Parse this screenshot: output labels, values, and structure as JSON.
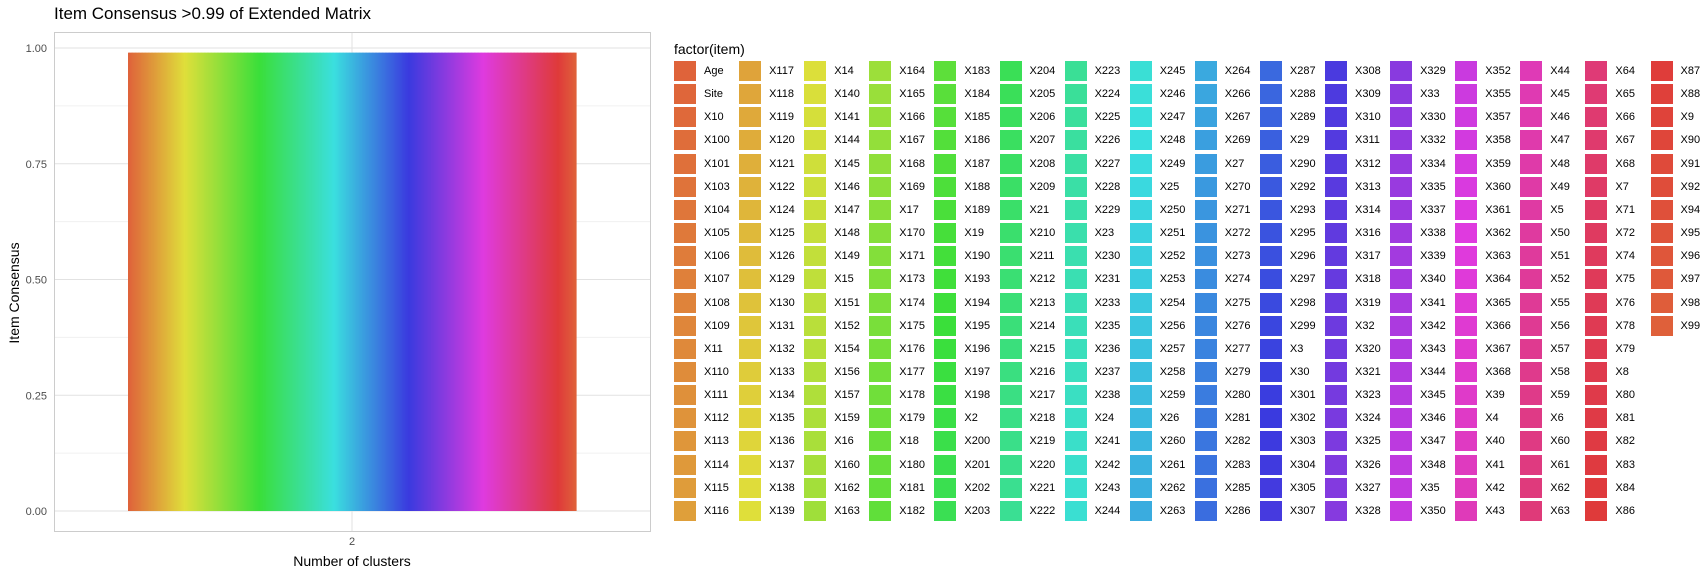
{
  "chart_data": {
    "type": "bar",
    "title": "Item Consensus >0.99 of Extended Matrix",
    "xlabel": "Number of clusters",
    "ylabel": "Item Consensus",
    "categories": [
      "2"
    ],
    "value": 0.99,
    "ylim": [
      0,
      1.05
    ],
    "y_ticks": [
      "0.00",
      "0.25",
      "0.50",
      "0.75",
      "1.00"
    ],
    "y_tick_values": [
      0,
      0.25,
      0.5,
      0.75,
      1.0
    ],
    "grid": true,
    "stacked_by": "item",
    "legend": {
      "title": "factor(item)",
      "placement": "right",
      "items": [
        "Age",
        "Site",
        "X10",
        "X100",
        "X101",
        "X103",
        "X104",
        "X105",
        "X106",
        "X107",
        "X108",
        "X109",
        "X11",
        "X110",
        "X111",
        "X112",
        "X113",
        "X114",
        "X115",
        "X116",
        "X117",
        "X118",
        "X119",
        "X120",
        "X121",
        "X122",
        "X124",
        "X125",
        "X126",
        "X129",
        "X130",
        "X131",
        "X132",
        "X133",
        "X134",
        "X135",
        "X136",
        "X137",
        "X138",
        "X139",
        "X14",
        "X140",
        "X141",
        "X144",
        "X145",
        "X146",
        "X147",
        "X148",
        "X149",
        "X15",
        "X151",
        "X152",
        "X154",
        "X156",
        "X157",
        "X159",
        "X16",
        "X160",
        "X162",
        "X163",
        "X164",
        "X165",
        "X166",
        "X167",
        "X168",
        "X169",
        "X17",
        "X170",
        "X171",
        "X173",
        "X174",
        "X175",
        "X176",
        "X177",
        "X178",
        "X179",
        "X18",
        "X180",
        "X181",
        "X182",
        "X183",
        "X184",
        "X185",
        "X186",
        "X187",
        "X188",
        "X189",
        "X19",
        "X190",
        "X193",
        "X194",
        "X195",
        "X196",
        "X197",
        "X198",
        "X2",
        "X200",
        "X201",
        "X202",
        "X203",
        "X204",
        "X205",
        "X206",
        "X207",
        "X208",
        "X209",
        "X21",
        "X210",
        "X211",
        "X212",
        "X213",
        "X214",
        "X215",
        "X216",
        "X217",
        "X218",
        "X219",
        "X220",
        "X221",
        "X222",
        "X223",
        "X224",
        "X225",
        "X226",
        "X227",
        "X228",
        "X229",
        "X23",
        "X230",
        "X231",
        "X233",
        "X235",
        "X236",
        "X237",
        "X238",
        "X24",
        "X241",
        "X242",
        "X243",
        "X244",
        "X245",
        "X246",
        "X247",
        "X248",
        "X249",
        "X25",
        "X250",
        "X251",
        "X252",
        "X253",
        "X254",
        "X256",
        "X257",
        "X258",
        "X259",
        "X26",
        "X260",
        "X261",
        "X262",
        "X263",
        "X264",
        "X266",
        "X267",
        "X269",
        "X27",
        "X270",
        "X271",
        "X272",
        "X273",
        "X274",
        "X275",
        "X276",
        "X277",
        "X279",
        "X280",
        "X281",
        "X282",
        "X283",
        "X285",
        "X286",
        "X287",
        "X288",
        "X289",
        "X29",
        "X290",
        "X292",
        "X293",
        "X295",
        "X296",
        "X297",
        "X298",
        "X299",
        "X3",
        "X30",
        "X301",
        "X302",
        "X303",
        "X304",
        "X305",
        "X307",
        "X308",
        "X309",
        "X310",
        "X311",
        "X312",
        "X313",
        "X314",
        "X316",
        "X317",
        "X318",
        "X319",
        "X32",
        "X320",
        "X321",
        "X323",
        "X324",
        "X325",
        "X326",
        "X327",
        "X328",
        "X329",
        "X33",
        "X330",
        "X332",
        "X334",
        "X335",
        "X337",
        "X338",
        "X339",
        "X340",
        "X341",
        "X342",
        "X343",
        "X344",
        "X345",
        "X346",
        "X347",
        "X348",
        "X35",
        "X350",
        "X352",
        "X355",
        "X357",
        "X358",
        "X359",
        "X360",
        "X361",
        "X362",
        "X363",
        "X364",
        "X365",
        "X366",
        "X367",
        "X368",
        "X39",
        "X4",
        "X40",
        "X41",
        "X42",
        "X43",
        "X44",
        "X45",
        "X46",
        "X47",
        "X48",
        "X49",
        "X5",
        "X50",
        "X51",
        "X52",
        "X55",
        "X56",
        "X57",
        "X58",
        "X59",
        "X6",
        "X60",
        "X61",
        "X62",
        "X63",
        "X64",
        "X65",
        "X66",
        "X67",
        "X68",
        "X7",
        "X71",
        "X72",
        "X74",
        "X75",
        "X76",
        "X78",
        "X79",
        "X8",
        "X80",
        "X81",
        "X82",
        "X83",
        "X84",
        "X86",
        "X87",
        "X88",
        "X9",
        "X90",
        "X91",
        "X92",
        "X94",
        "X95",
        "X96",
        "X97",
        "X98",
        "X99"
      ],
      "rows_per_column": 20
    }
  }
}
